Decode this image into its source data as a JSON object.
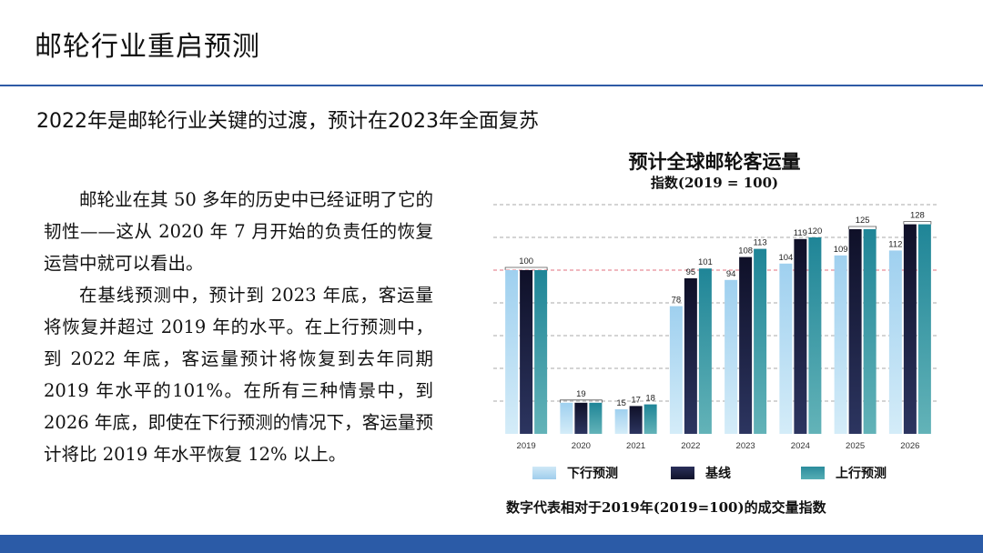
{
  "slide": {
    "title": "邮轮行业重启预测",
    "headline": "2022年是邮轮行业关键的过渡，预计在2023年全面复苏",
    "paragraphs": [
      "邮轮业在其 50 多年的历史中已经证明了它的韧性——这从 2020 年 7 月开始的负责任的恢复运营中就可以看出。",
      "在基线预测中，预计到 2023 年底，客运量将恢复并超过 2019 年的水平。在上行预测中，到 2022 年底，客运量预计将恢复到去年同期 2019 年水平的101%。在所有三种情景中，到 2026 年底，即使在下行预测的情况下，客运量预计将比 2019 年水平恢复 12% 以上。"
    ],
    "footnote": "数字代表相对于2019年(2019=100)的成交量指数"
  },
  "colors": {
    "accent": "#2b5ba7",
    "downside": "#a7d3ee",
    "baseline": "#151834",
    "upside": "#3b9aa6",
    "reference_line": "#e0707f"
  },
  "chart_data": {
    "type": "bar",
    "title": "预计全球邮轮客运量",
    "subtitle": "指数(2019 = 100)",
    "categories": [
      "2019",
      "2020",
      "2021",
      "2022",
      "2023",
      "2024",
      "2025",
      "2026"
    ],
    "series": [
      {
        "name": "下行预测",
        "color": "#a7d3ee",
        "values": [
          100,
          19,
          15,
          78,
          94,
          104,
          109,
          112
        ]
      },
      {
        "name": "基线",
        "color": "#151834",
        "values": [
          100,
          19,
          17,
          95,
          108,
          119,
          125,
          128
        ]
      },
      {
        "name": "上行预测",
        "color": "#3b9aa6",
        "values": [
          100,
          19,
          18,
          101,
          113,
          120,
          125,
          128
        ]
      }
    ],
    "labels": [
      {
        "category": "2019",
        "series": [
          1
        ],
        "text": "100",
        "bracket": true
      },
      {
        "category": "2020",
        "series": [
          1
        ],
        "text": "19",
        "bracket": true
      },
      {
        "category": "2021",
        "series": [
          0
        ],
        "text": "15",
        "bracket": false
      },
      {
        "category": "2021",
        "series": [
          1
        ],
        "text": "17",
        "bracket": false
      },
      {
        "category": "2021",
        "series": [
          2
        ],
        "text": "18",
        "bracket": false
      },
      {
        "category": "2022",
        "series": [
          0
        ],
        "text": "78",
        "bracket": false
      },
      {
        "category": "2022",
        "series": [
          1
        ],
        "text": "95",
        "bracket": false
      },
      {
        "category": "2022",
        "series": [
          2
        ],
        "text": "101",
        "bracket": false
      },
      {
        "category": "2023",
        "series": [
          0
        ],
        "text": "94",
        "bracket": false
      },
      {
        "category": "2023",
        "series": [
          1
        ],
        "text": "108",
        "bracket": false
      },
      {
        "category": "2023",
        "series": [
          2
        ],
        "text": "113",
        "bracket": false
      },
      {
        "category": "2024",
        "series": [
          0
        ],
        "text": "104",
        "bracket": false
      },
      {
        "category": "2024",
        "series": [
          1
        ],
        "text": "119",
        "bracket": false
      },
      {
        "category": "2024",
        "series": [
          2
        ],
        "text": "120",
        "bracket": false
      },
      {
        "category": "2025",
        "series": [
          0
        ],
        "text": "109",
        "bracket": false
      },
      {
        "category": "2025",
        "series": [
          1,
          2
        ],
        "text": "125",
        "bracket": true
      },
      {
        "category": "2026",
        "series": [
          0
        ],
        "text": "112",
        "bracket": false
      },
      {
        "category": "2026",
        "series": [
          1,
          2
        ],
        "text": "128",
        "bracket": true
      }
    ],
    "reference_value": 100,
    "ylim": [
      0,
      140
    ],
    "grid": true,
    "xlabel": "",
    "ylabel": "",
    "legend_position": "bottom"
  }
}
